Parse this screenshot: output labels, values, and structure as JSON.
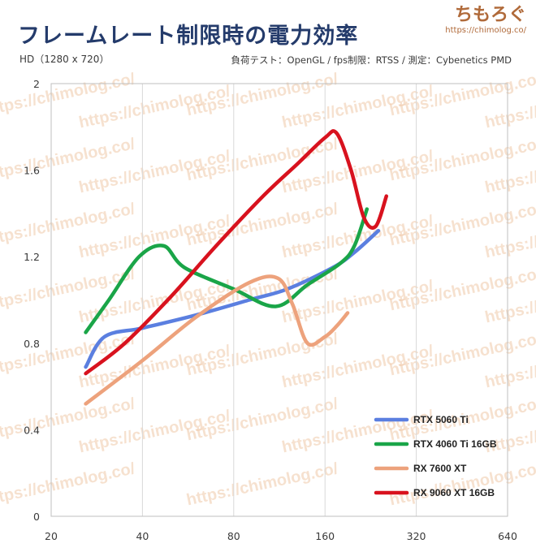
{
  "header": {
    "title": "フレームレート制限時の電力効率",
    "subtitle": "HD（1280 x 720）",
    "method": "負荷テスト：OpenGL / fps制限：RTSS / 測定：Cybenetics PMD",
    "brand_name": "ちもろぐ",
    "brand_url": "https://chimolog.co/"
  },
  "chart_data": {
    "type": "line",
    "title": "フレームレート制限時の電力効率",
    "subtitle": "HD（1280 x 720）",
    "xscale": "log2",
    "xlim": [
      20,
      640
    ],
    "ylim": [
      0,
      2
    ],
    "x_ticks": [
      "20",
      "40",
      "80",
      "160",
      "320",
      "640"
    ],
    "y_ticks": [
      "0",
      "0.4",
      "0.8",
      "1.2",
      "1.6",
      "2"
    ],
    "grid": "vertical",
    "legend_position": "bottom-right",
    "watermark": "https://chimolog.co/",
    "series": [
      {
        "name": "RTX 5060 Ti",
        "color": "#5b7fe0",
        "points": [
          [
            26,
            0.69
          ],
          [
            30,
            0.83
          ],
          [
            40,
            0.87
          ],
          [
            60,
            0.93
          ],
          [
            90,
            1.0
          ],
          [
            120,
            1.05
          ],
          [
            170,
            1.15
          ],
          [
            200,
            1.22
          ],
          [
            240,
            1.32
          ]
        ]
      },
      {
        "name": "RTX 4060 Ti 16GB",
        "color": "#1aa548",
        "points": [
          [
            26,
            0.85
          ],
          [
            31,
            1.0
          ],
          [
            39,
            1.2
          ],
          [
            47,
            1.25
          ],
          [
            55,
            1.15
          ],
          [
            80,
            1.05
          ],
          [
            110,
            0.97
          ],
          [
            140,
            1.07
          ],
          [
            180,
            1.17
          ],
          [
            200,
            1.25
          ],
          [
            220,
            1.42
          ]
        ]
      },
      {
        "name": "RX 7600 XT",
        "color": "#eda27c",
        "points": [
          [
            26,
            0.52
          ],
          [
            40,
            0.72
          ],
          [
            60,
            0.92
          ],
          [
            90,
            1.08
          ],
          [
            112,
            1.1
          ],
          [
            125,
            0.98
          ],
          [
            140,
            0.8
          ],
          [
            160,
            0.83
          ],
          [
            175,
            0.88
          ],
          [
            190,
            0.94
          ]
        ]
      },
      {
        "name": "RX 9060 XT 16GB",
        "color": "#d8121e",
        "points": [
          [
            26,
            0.66
          ],
          [
            35,
            0.8
          ],
          [
            50,
            1.02
          ],
          [
            70,
            1.25
          ],
          [
            100,
            1.48
          ],
          [
            130,
            1.63
          ],
          [
            160,
            1.75
          ],
          [
            175,
            1.77
          ],
          [
            195,
            1.6
          ],
          [
            215,
            1.38
          ],
          [
            235,
            1.34
          ],
          [
            255,
            1.48
          ]
        ]
      }
    ]
  }
}
